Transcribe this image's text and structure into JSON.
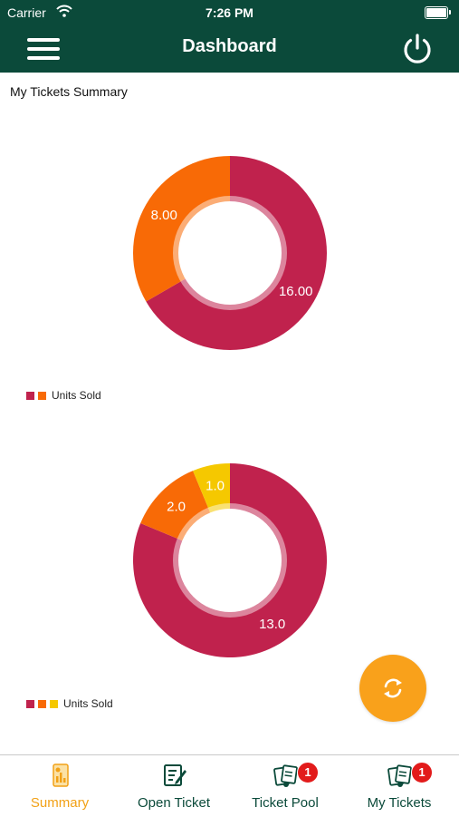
{
  "status_bar": {
    "carrier": "Carrier",
    "time": "7:26 PM"
  },
  "nav": {
    "title": "Dashboard"
  },
  "summary": {
    "title": "My Tickets Summary"
  },
  "colors": {
    "crimson": "#c0224d",
    "orange": "#f86a06",
    "yellow": "#f5c800",
    "header": "#0b4a3a",
    "accent": "#f9a11b"
  },
  "chart_data": [
    {
      "type": "pie",
      "labels": [
        "16.00",
        "8.00"
      ],
      "values": [
        16,
        8
      ],
      "colors": [
        "#c0224d",
        "#f86a06"
      ],
      "legend": "Units Sold",
      "legend_position": "bottom-left"
    },
    {
      "type": "pie",
      "labels": [
        "13.0",
        "2.0",
        "1.0"
      ],
      "values": [
        13,
        2,
        1
      ],
      "colors": [
        "#c0224d",
        "#f86a06",
        "#f5c800"
      ],
      "legend": "Units Sold",
      "legend_position": "bottom-left"
    }
  ],
  "fab": {
    "icon": "refresh-icon"
  },
  "tabs": [
    {
      "label": "Summary",
      "icon": "summary-icon",
      "active": true
    },
    {
      "label": "Open Ticket",
      "icon": "open-ticket-icon"
    },
    {
      "label": "Ticket Pool",
      "icon": "ticket-pool-icon",
      "badge": "1"
    },
    {
      "label": "My Tickets",
      "icon": "my-tickets-icon",
      "badge": "1"
    }
  ]
}
